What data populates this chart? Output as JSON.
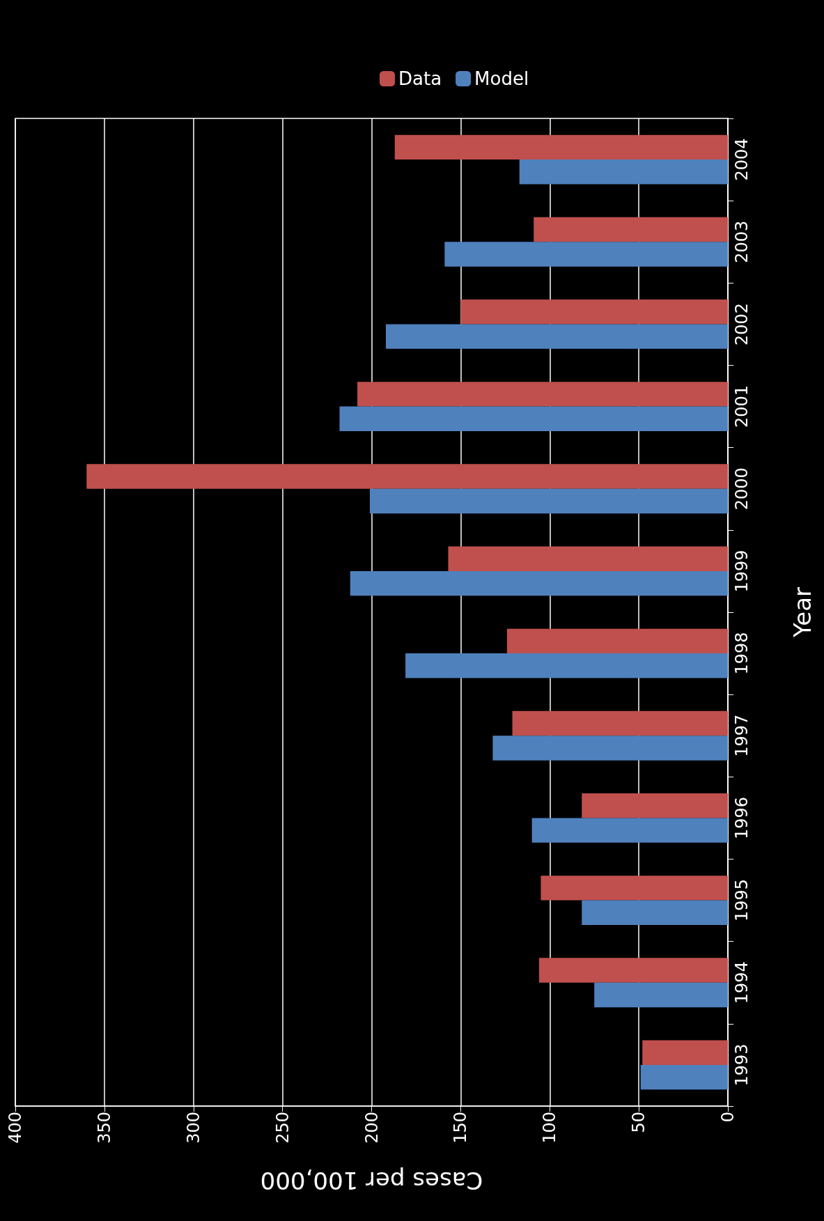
{
  "chart_data": {
    "type": "bar",
    "orientation": "horizontal",
    "xlabel": "Cases per 100,000",
    "ylabel": "Year",
    "categories": [
      "2004",
      "2003",
      "2002",
      "2001",
      "2000",
      "1999",
      "1998",
      "1997",
      "1996",
      "1995",
      "1994",
      "1993"
    ],
    "series": [
      {
        "name": "Data",
        "color": "#c0504d",
        "values": [
          187,
          109,
          150,
          208,
          360,
          157,
          124,
          121,
          82,
          105,
          106,
          48
        ]
      },
      {
        "name": "Model",
        "color": "#4f81bd",
        "values": [
          117,
          159,
          192,
          218,
          201,
          212,
          181,
          132,
          110,
          82,
          75,
          49
        ]
      }
    ],
    "xlim": [
      400,
      0
    ],
    "xticks": [
      0,
      50,
      100,
      150,
      200,
      250,
      300,
      350,
      400
    ],
    "grid": "x",
    "legend": "top"
  }
}
